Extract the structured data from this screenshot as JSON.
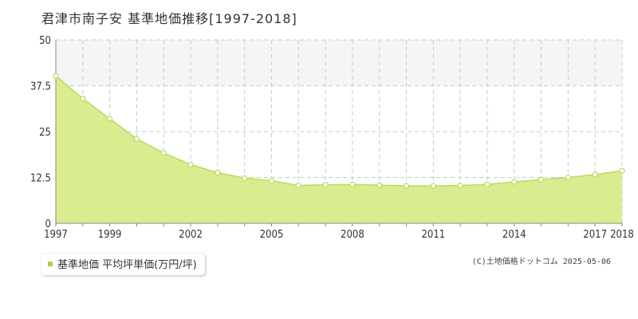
{
  "title": "君津市南子安 基準地価推移[1997-2018]",
  "legend": {
    "label": "基準地価 平均坪単価(万円/坪)"
  },
  "credit": "(C)土地価格ドットコム 2025-05-06",
  "colors": {
    "area_fill": "#d9ec8f",
    "line": "#b8dc5a",
    "marker_fill": "#ffffff",
    "grid": "#c9c9c9",
    "band": "#f5f5f7",
    "axis_text": "#333333",
    "legend_swatch": "#a8d24a"
  },
  "chart_data": {
    "type": "area",
    "title": "君津市南子安 基準地価推移[1997-2018]",
    "xlabel": "",
    "ylabel": "",
    "x": [
      1997,
      1998,
      1999,
      2000,
      2001,
      2002,
      2003,
      2004,
      2005,
      2006,
      2007,
      2008,
      2009,
      2010,
      2011,
      2012,
      2013,
      2014,
      2015,
      2016,
      2017,
      2018
    ],
    "series": [
      {
        "name": "基準地価 平均坪単価(万円/坪)",
        "values": [
          40.2,
          34.0,
          28.5,
          23.0,
          19.2,
          16.0,
          13.8,
          12.3,
          11.6,
          10.3,
          10.5,
          10.6,
          10.4,
          10.2,
          10.2,
          10.3,
          10.6,
          11.3,
          11.9,
          12.5,
          13.3,
          14.3
        ]
      }
    ],
    "xlim": [
      1997,
      2018
    ],
    "ylim": [
      0,
      50
    ],
    "yticks": [
      0,
      12.5,
      25,
      37.5,
      50
    ],
    "ytick_labels": [
      "0",
      "12.5",
      "25",
      "37.5",
      "50"
    ],
    "xtick_labels": [
      "1997",
      "1999",
      "2002",
      "2005",
      "2008",
      "2011",
      "2014",
      "2017",
      "2018"
    ],
    "xtick_values": [
      1997,
      1999,
      2002,
      2005,
      2008,
      2011,
      2014,
      2017,
      2018
    ],
    "shaded_band": [
      37.5,
      50
    ],
    "grid": true,
    "legend_position": "bottom-left"
  }
}
